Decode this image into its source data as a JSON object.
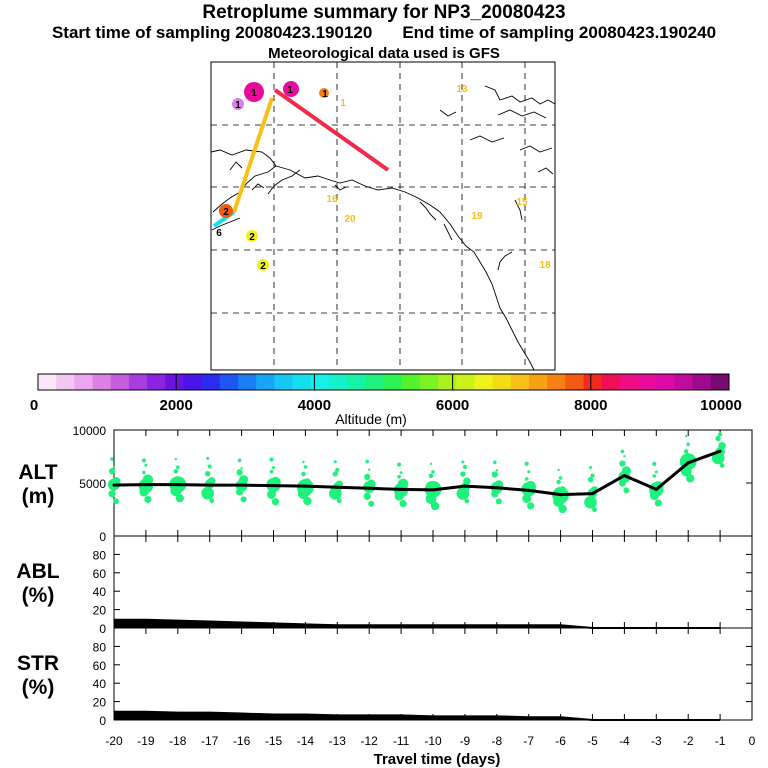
{
  "header": {
    "title": "Retroplume summary for NP3_20080423",
    "start_label": "Start time of sampling 20080423.190120",
    "end_label": "End time of sampling 20080423.190240",
    "met_label": "Meteorological data used is GFS"
  },
  "colorbar": {
    "label": "Altitude (m)",
    "ticks": [
      "0",
      "2000",
      "4000",
      "6000",
      "8000",
      "10000"
    ],
    "colors": [
      "#fbe6fb",
      "#f3c6f3",
      "#eaa6ee",
      "#dc80e6",
      "#c65ee0",
      "#a83ee0",
      "#8a24e0",
      "#6a14e0",
      "#4c14e8",
      "#2c2cf0",
      "#1f55f5",
      "#1a7ef5",
      "#17a6f5",
      "#15c7f2",
      "#13e0ee",
      "#12f0e8",
      "#15f2c8",
      "#18f2a5",
      "#1ef27c",
      "#2cf252",
      "#52f22e",
      "#7cf222",
      "#a6f21c",
      "#ccf219",
      "#f0f21a",
      "#f5dc18",
      "#f7c016",
      "#f7a214",
      "#f78012",
      "#f55a12",
      "#f22a22",
      "#f20e55",
      "#f00c82",
      "#ea0a9c",
      "#dc0aa6",
      "#c20a9c",
      "#9e0a8c",
      "#780a74"
    ]
  },
  "map": {
    "labels": [
      "13",
      "1",
      "1",
      "1",
      "1",
      "1",
      "16",
      "20",
      "19",
      "15",
      "18",
      "2",
      "2",
      "2",
      "6"
    ]
  },
  "chart_data": [
    {
      "type": "line",
      "name": "ALT",
      "ylabel": "ALT\n(m)",
      "ylabel_line1": "ALT",
      "ylabel_line2": "(m)",
      "ylim": [
        0,
        10000
      ],
      "yticks": [
        "0",
        "5000",
        "10000"
      ],
      "x": [
        -20,
        -19,
        -18,
        -17,
        -16,
        -15,
        -14,
        -13,
        -12,
        -11,
        -10,
        -9,
        -8,
        -7,
        -6,
        -5,
        -4,
        -3,
        -2,
        -1
      ],
      "values": [
        4800,
        4850,
        4850,
        4800,
        4800,
        4750,
        4700,
        4600,
        4500,
        4400,
        4350,
        4700,
        4550,
        4300,
        3900,
        4000,
        5700,
        4400,
        6900,
        8000
      ],
      "scatter_color": "#1ef27c",
      "xlim": [
        -20,
        0
      ]
    },
    {
      "type": "area",
      "name": "ABL",
      "ylabel_line1": "ABL",
      "ylabel_line2": "(%)",
      "ylim": [
        0,
        100
      ],
      "yticks": [
        "0",
        "20",
        "40",
        "60",
        "80"
      ],
      "x": [
        -20,
        -19,
        -18,
        -17,
        -16,
        -15,
        -14,
        -13,
        -12,
        -11,
        -10,
        -9,
        -8,
        -7,
        -6,
        -5,
        -4,
        -3,
        -2,
        -1
      ],
      "values": [
        9,
        9,
        8,
        7,
        6,
        5,
        4,
        3,
        3,
        3,
        3,
        3,
        3,
        3,
        3,
        0,
        0,
        0,
        0,
        0
      ],
      "xlim": [
        -20,
        0
      ]
    },
    {
      "type": "area",
      "name": "STR",
      "ylabel_line1": "STR",
      "ylabel_line2": "(%)",
      "ylim": [
        0,
        100
      ],
      "yticks": [
        "0",
        "20",
        "40",
        "60",
        "80"
      ],
      "x": [
        -20,
        -19,
        -18,
        -17,
        -16,
        -15,
        -14,
        -13,
        -12,
        -11,
        -10,
        -9,
        -8,
        -7,
        -6,
        -5,
        -4,
        -3,
        -2,
        -1
      ],
      "values": [
        9,
        9,
        8,
        8,
        7,
        6,
        6,
        5,
        5,
        5,
        4,
        4,
        4,
        3,
        3,
        0,
        0,
        0,
        0,
        0
      ],
      "xlim": [
        -20,
        0
      ]
    }
  ],
  "x_axis": {
    "xlabel": "Travel time (days)",
    "ticks": [
      "-20",
      "-19",
      "-18",
      "-17",
      "-16",
      "-15",
      "-14",
      "-13",
      "-12",
      "-11",
      "-10",
      "-9",
      "-8",
      "-7",
      "-6",
      "-5",
      "-4",
      "-3",
      "-2",
      "-1",
      "0"
    ]
  }
}
